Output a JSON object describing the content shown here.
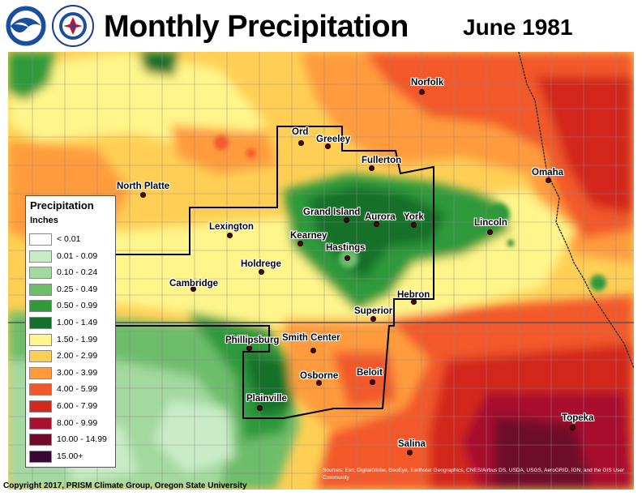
{
  "header": {
    "title": "Monthly Precipitation",
    "period": "June 1981",
    "logo_noaa": "NOAA",
    "logo_nws": "NATIONAL WEATHER SERVICE"
  },
  "legend": {
    "title": "Precipitation",
    "units": "Inches",
    "bins": [
      {
        "label": "< 0.01",
        "color": "#ffffff"
      },
      {
        "label": "0.01 - 0.09",
        "color": "#c9ecc6"
      },
      {
        "label": "0.10 - 0.24",
        "color": "#a3d8a0"
      },
      {
        "label": "0.25 - 0.49",
        "color": "#6dbd6a"
      },
      {
        "label": "0.50 - 0.99",
        "color": "#2f9a3a"
      },
      {
        "label": "1.00 - 1.49",
        "color": "#17702a"
      },
      {
        "label": "1.50 - 1.99",
        "color": "#fff58a"
      },
      {
        "label": "2.00 - 2.99",
        "color": "#ffcf55"
      },
      {
        "label": "3.00 - 3.99",
        "color": "#ff9b3c"
      },
      {
        "label": "4.00 - 5.99",
        "color": "#f2592a"
      },
      {
        "label": "6.00 - 7.99",
        "color": "#d3281f"
      },
      {
        "label": "8.00 - 9.99",
        "color": "#a8102d"
      },
      {
        "label": "10.00 - 14.99",
        "color": "#6e0a2a"
      },
      {
        "label": "15.00+",
        "color": "#3a0636"
      }
    ]
  },
  "cities": [
    {
      "name": "Norfolk"
    },
    {
      "name": "Ord"
    },
    {
      "name": "Greeley"
    },
    {
      "name": "Fullerton"
    },
    {
      "name": "Omaha"
    },
    {
      "name": "North Platte"
    },
    {
      "name": "Grand Island"
    },
    {
      "name": "Aurora"
    },
    {
      "name": "York"
    },
    {
      "name": "Lincoln"
    },
    {
      "name": "Lexington"
    },
    {
      "name": "Kearney"
    },
    {
      "name": "Hastings"
    },
    {
      "name": "Holdrege"
    },
    {
      "name": "Cambridge"
    },
    {
      "name": "Hebron"
    },
    {
      "name": "Superior"
    },
    {
      "name": "Phillipsburg"
    },
    {
      "name": "Smith Center"
    },
    {
      "name": "Osborne"
    },
    {
      "name": "Beloit"
    },
    {
      "name": "Plainville"
    },
    {
      "name": "Salina"
    },
    {
      "name": "Topeka"
    }
  ],
  "footer": {
    "copyright": "Copyright 2017, PRISM Climate Group, Oregon State University",
    "credits": "Sources: Esri, DigitalGlobe, GeoEye, Earthstar Geographics, CNES/Airbus DS, USDA, USGS, AeroGRID, IGN, and the GIS User Community"
  }
}
